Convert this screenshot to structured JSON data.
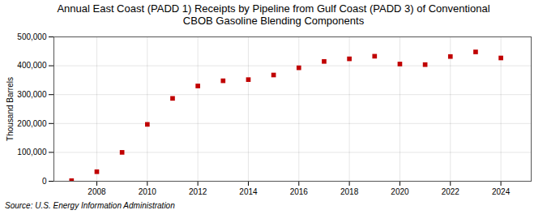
{
  "chart_data": {
    "type": "scatter",
    "title": "Annual East Coast (PADD 1) Receipts by Pipeline from Gulf Coast (PADD 3) of Conventional\nCBOB Gasoline Blending Components",
    "ylabel": "Thousand Barrels",
    "source": "Source: U.S. Energy Information Administration",
    "x": [
      2007,
      2008,
      2009,
      2010,
      2011,
      2012,
      2013,
      2014,
      2015,
      2016,
      2017,
      2018,
      2019,
      2020,
      2021,
      2022,
      2023,
      2024
    ],
    "values": [
      2000,
      33000,
      100000,
      197000,
      287000,
      330000,
      348000,
      352000,
      368000,
      393000,
      415000,
      424000,
      433000,
      406000,
      404000,
      432000,
      448000,
      427000
    ],
    "color": "#c00000",
    "marker": "square",
    "xlim": [
      2006.3,
      2025.2
    ],
    "xticks": [
      2008,
      2010,
      2012,
      2014,
      2016,
      2018,
      2020,
      2022,
      2024
    ],
    "ylim": [
      0,
      500000
    ],
    "yticks": [
      0,
      {
        "value": 100000,
        "label": "100,000"
      },
      {
        "value": 200000,
        "label": "200,000"
      },
      {
        "value": 300000,
        "label": "300,000"
      },
      {
        "value": 400000,
        "label": "400,000"
      },
      {
        "value": 500000,
        "label": "500,000"
      }
    ],
    "grid": true
  }
}
